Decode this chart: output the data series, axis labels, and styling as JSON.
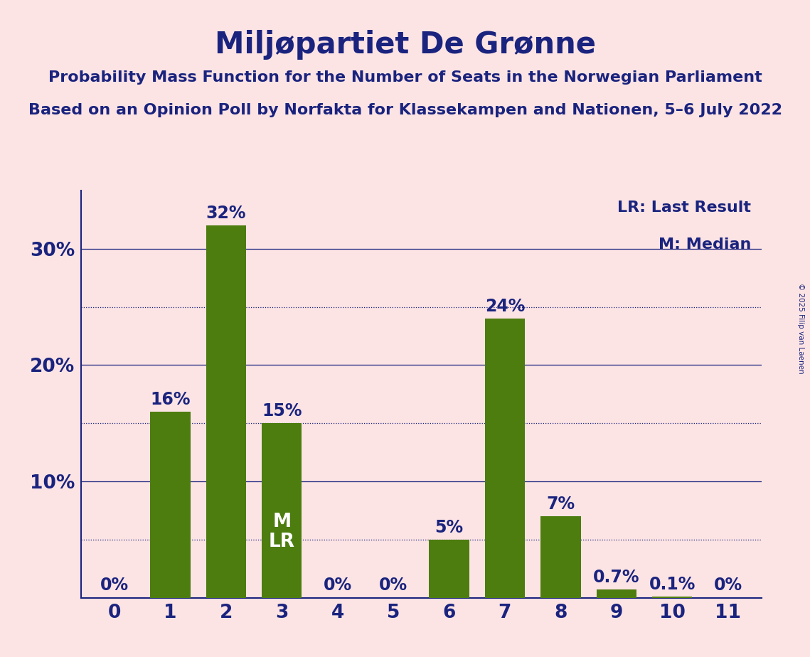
{
  "title": "Miljøpartiet De Grønne",
  "subtitle1": "Probability Mass Function for the Number of Seats in the Norwegian Parliament",
  "subtitle2": "Based on an Opinion Poll by Norfakta for Klassekampen and Nationen, 5–6 July 2022",
  "copyright": "© 2025 Filip van Laenen",
  "legend_lr": "LR: Last Result",
  "legend_m": "M: Median",
  "categories": [
    0,
    1,
    2,
    3,
    4,
    5,
    6,
    7,
    8,
    9,
    10,
    11
  ],
  "values": [
    0.0,
    16.0,
    32.0,
    15.0,
    0.0,
    0.0,
    5.0,
    24.0,
    7.0,
    0.7,
    0.1,
    0.0
  ],
  "bar_labels": [
    "0%",
    "16%",
    "32%",
    "15%",
    "0%",
    "0%",
    "5%",
    "24%",
    "7%",
    "0.7%",
    "0.1%",
    "0%"
  ],
  "bar_color": "#4d7c0f",
  "background_color": "#fce4e4",
  "text_color": "#1a237e",
  "grid_color": "#1a237e",
  "ylim": [
    0,
    35
  ],
  "median_bar": 3,
  "lr_bar": 3,
  "title_fontsize": 30,
  "subtitle_fontsize": 16,
  "tick_fontsize": 19,
  "annotation_fontsize": 17,
  "legend_fontsize": 16,
  "bar_width": 0.72
}
